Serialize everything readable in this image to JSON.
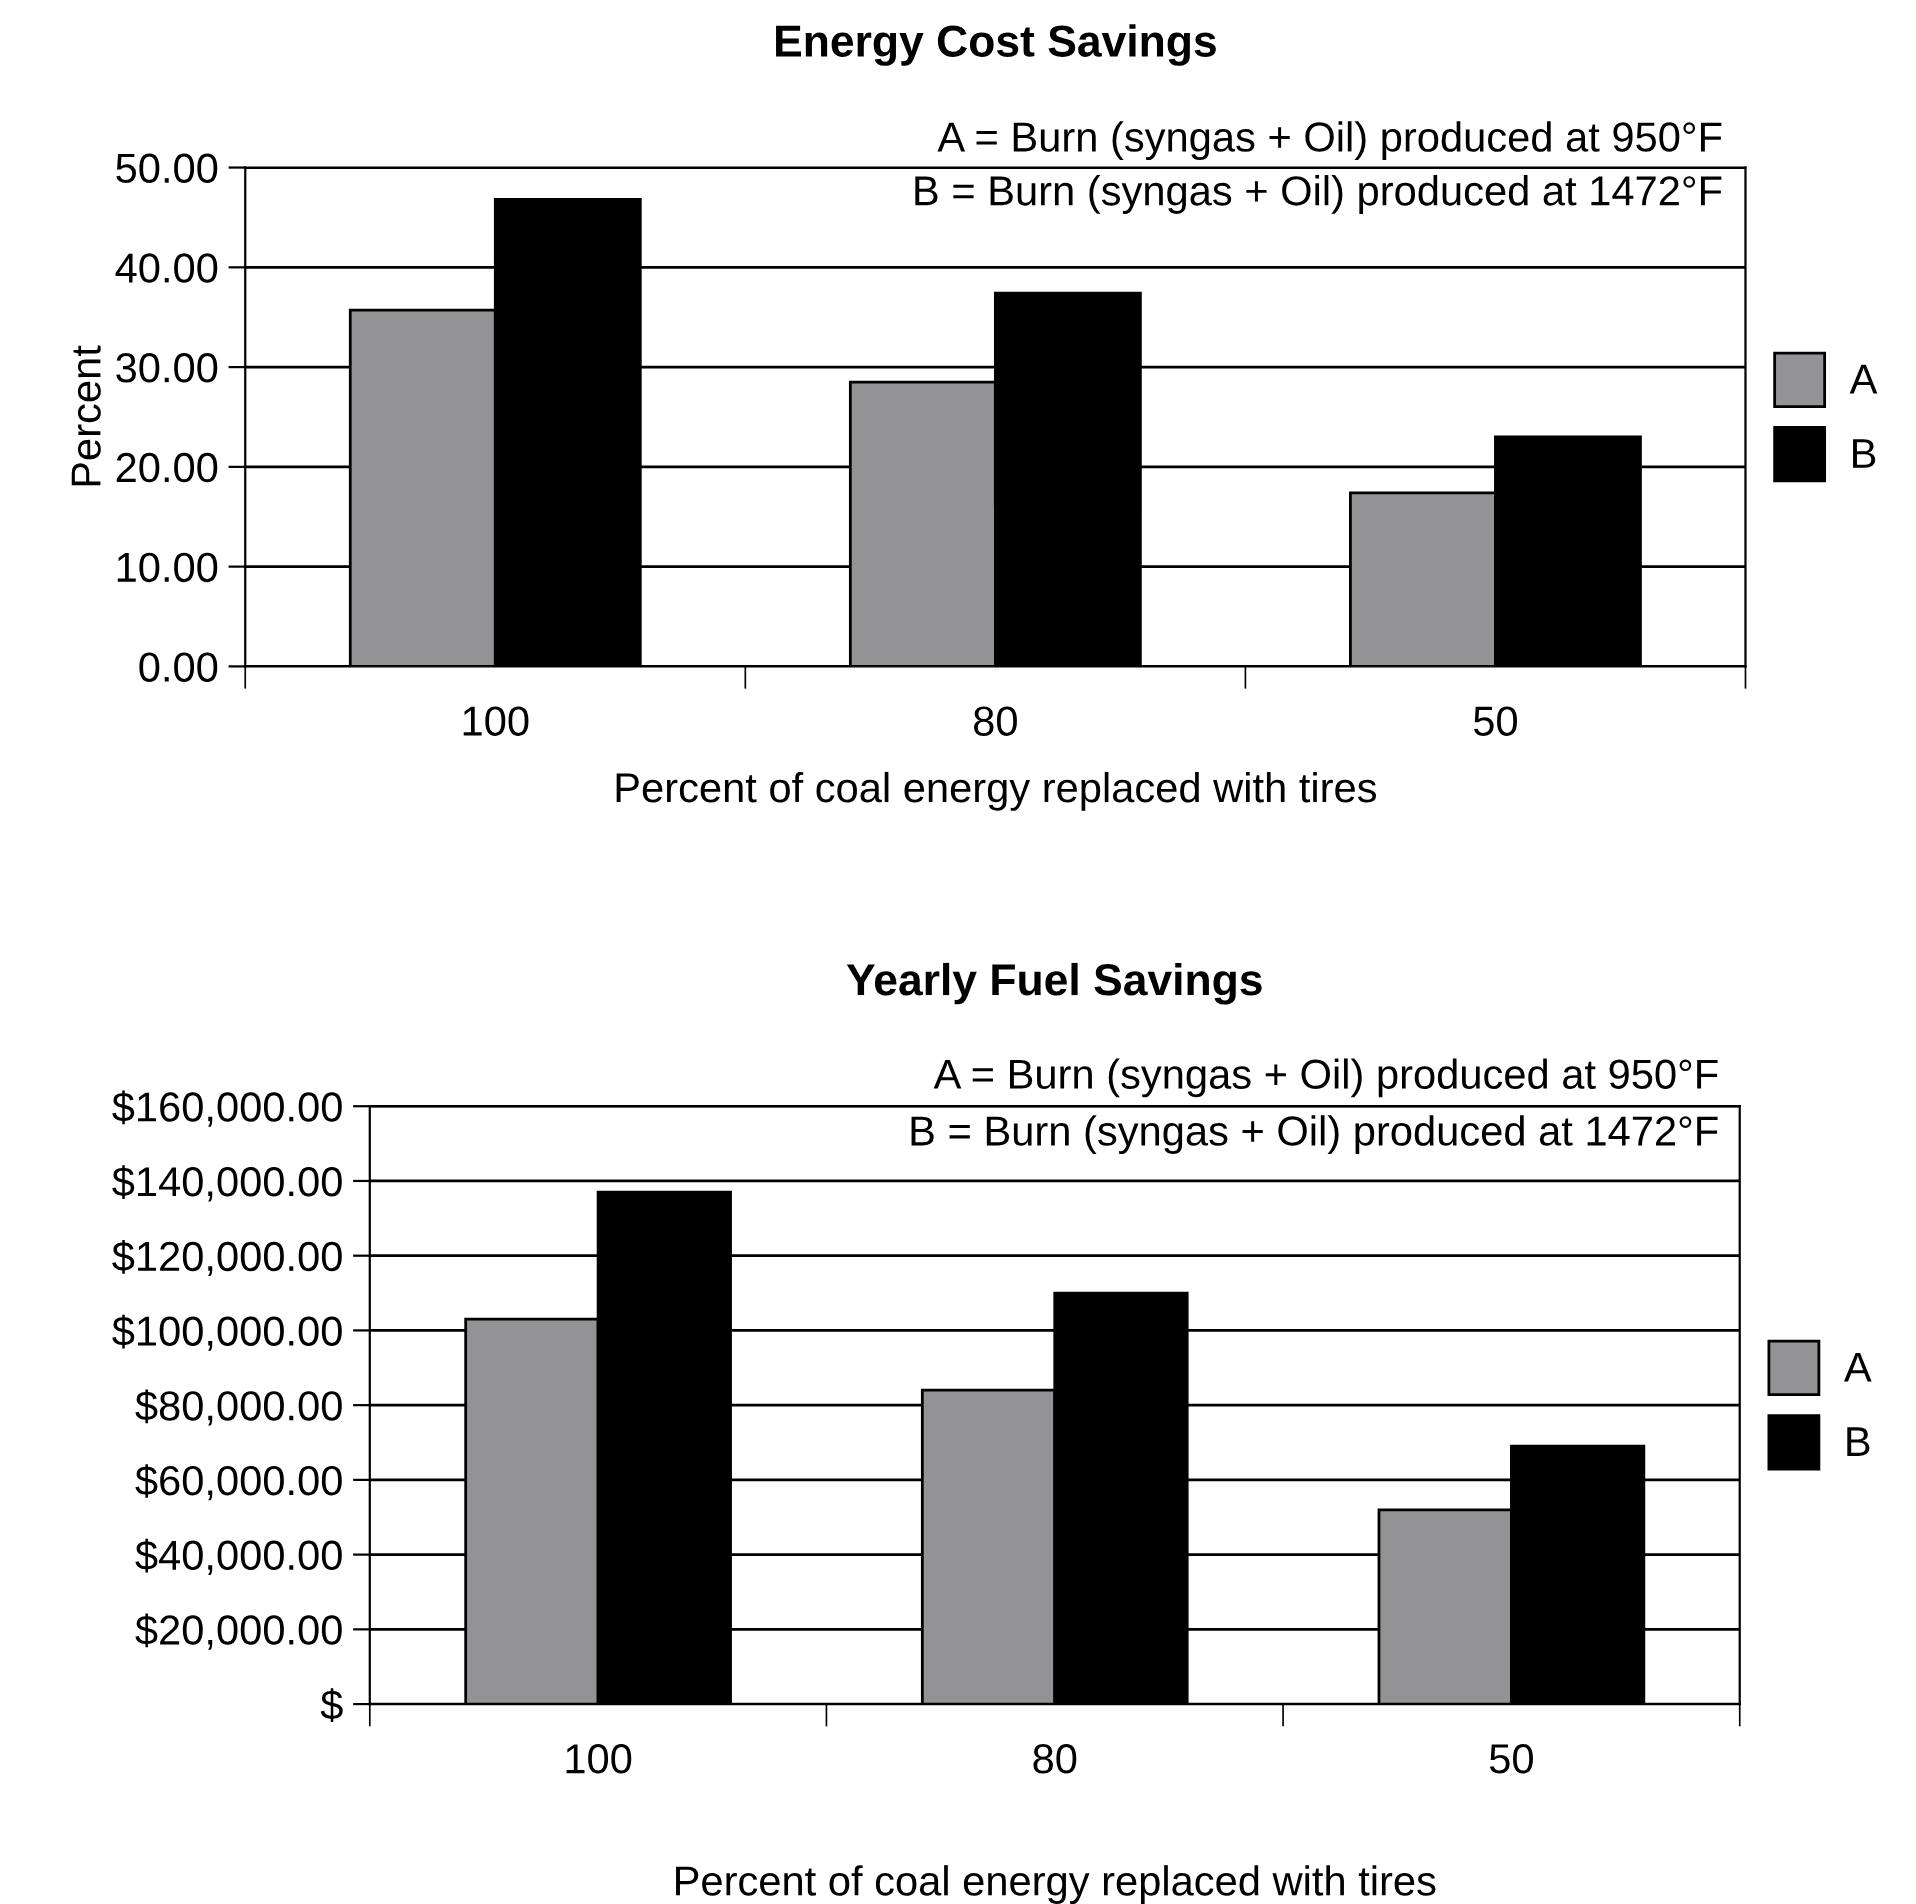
{
  "chart_data": [
    {
      "type": "bar",
      "title": "Energy Cost Savings",
      "xlabel": "Percent of coal energy replaced with tires",
      "ylabel": "Percent",
      "categories": [
        "100",
        "80",
        "50"
      ],
      "series": [
        {
          "name": "A",
          "color": "#939396",
          "values": [
            35.7,
            28.5,
            17.4
          ]
        },
        {
          "name": "B",
          "color": "#000000",
          "values": [
            46.8,
            37.4,
            23.0
          ]
        }
      ],
      "ylim": [
        0,
        50
      ],
      "yticks": [
        {
          "value": 0,
          "label": "0.00"
        },
        {
          "value": 10,
          "label": "10.00"
        },
        {
          "value": 20,
          "label": "20.00"
        },
        {
          "value": 30,
          "label": "30.00"
        },
        {
          "value": 40,
          "label": "40.00"
        },
        {
          "value": 50,
          "label": "50.00"
        }
      ],
      "annotations": [
        "A = Burn (syngas + Oil) produced at 950°F",
        "B = Burn (syngas + Oil) produced at 1472°F"
      ],
      "grid": "y",
      "legend": "right"
    },
    {
      "type": "bar",
      "title": "Yearly Fuel Savings",
      "xlabel": "Percent of coal energy replaced with tires",
      "categories": [
        "100",
        "80",
        "50"
      ],
      "series": [
        {
          "name": "A",
          "color": "#939396",
          "values": [
            103000,
            84000,
            52000
          ]
        },
        {
          "name": "B",
          "color": "#000000",
          "values": [
            137000,
            110000,
            69000
          ]
        }
      ],
      "ylim": [
        0,
        160000
      ],
      "yticks": [
        {
          "value": 0,
          "label": "$"
        },
        {
          "value": 20000,
          "label": "$20,000.00"
        },
        {
          "value": 40000,
          "label": "$40,000.00"
        },
        {
          "value": 60000,
          "label": "$60,000.00"
        },
        {
          "value": 80000,
          "label": "$80,000.00"
        },
        {
          "value": 100000,
          "label": "$100,000.00"
        },
        {
          "value": 120000,
          "label": "$120,000.00"
        },
        {
          "value": 140000,
          "label": "$140,000.00"
        },
        {
          "value": 160000,
          "label": "$160,000.00"
        }
      ],
      "annotations": [
        "A = Burn (syngas + Oil) produced at 950°F",
        "B = Burn (syngas + Oil) produced at 1472°F"
      ],
      "grid": "y",
      "legend": "right"
    }
  ]
}
